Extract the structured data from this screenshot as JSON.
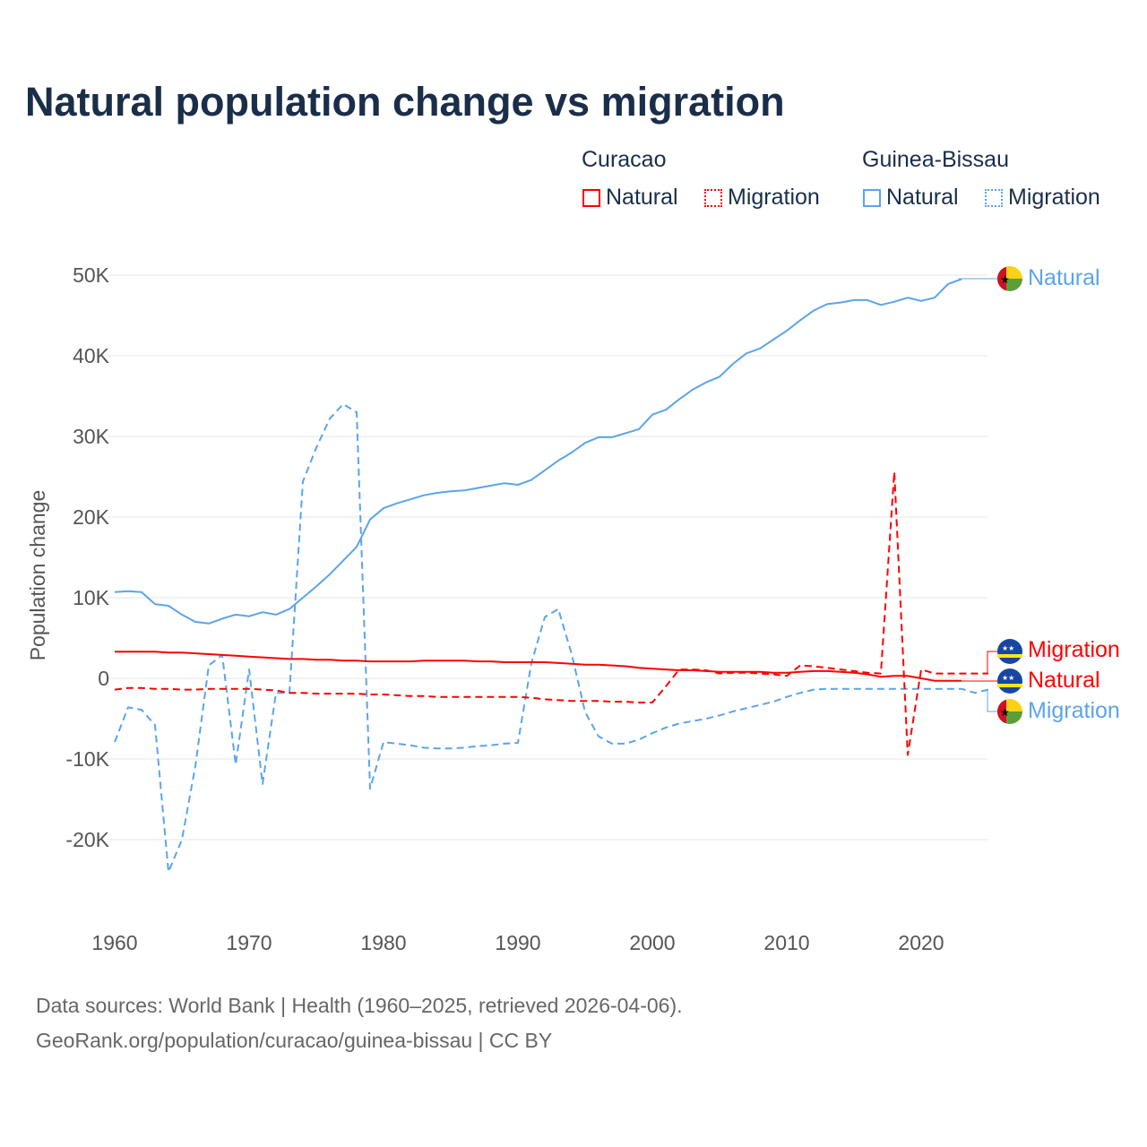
{
  "title": "Natural population change vs migration",
  "legend": {
    "groups": [
      {
        "name": "Curacao",
        "color": "#ff0000",
        "items": [
          "Natural",
          "Migration"
        ]
      },
      {
        "name": "Guinea-Bissau",
        "color": "#5ba4ec",
        "items": [
          "Natural",
          "Migration"
        ]
      }
    ]
  },
  "end_labels": {
    "gb_natural": "Natural",
    "cw_migration": "Migration",
    "cw_natural": "Natural",
    "gb_migration": "Migration"
  },
  "footer": {
    "line1": "Data sources: World Bank | Health (1960–2025, retrieved 2026-04-06).",
    "line2": "GeoRank.org/population/curacao/guinea-bissau | CC BY"
  },
  "chart_data": {
    "type": "line",
    "title": "Natural population change vs migration",
    "xlabel": "",
    "ylabel": "Population change",
    "xlim": [
      1960,
      2025
    ],
    "ylim": [
      -25000,
      52000
    ],
    "yticks": [
      {
        "v": 50000,
        "label": "50K"
      },
      {
        "v": 40000,
        "label": "40K"
      },
      {
        "v": 30000,
        "label": "30K"
      },
      {
        "v": 20000,
        "label": "20K"
      },
      {
        "v": 10000,
        "label": "10K"
      },
      {
        "v": 0,
        "label": "0"
      },
      {
        "v": -10000,
        "label": "-10K"
      },
      {
        "v": -20000,
        "label": "-20K"
      }
    ],
    "xticks": [
      {
        "v": 1960,
        "label": "1960"
      },
      {
        "v": 1970,
        "label": "1970"
      },
      {
        "v": 1980,
        "label": "1980"
      },
      {
        "v": 1990,
        "label": "1990"
      },
      {
        "v": 2000,
        "label": "2000"
      },
      {
        "v": 2010,
        "label": "2010"
      },
      {
        "v": 2020,
        "label": "2020"
      }
    ],
    "series": [
      {
        "name": "Guinea-Bissau Natural",
        "color": "#5ba4ec",
        "dash": false,
        "start": 1960,
        "values": [
          10.7,
          10.8,
          10.7,
          9.2,
          9.0,
          7.9,
          7.0,
          6.8,
          7.4,
          7.9,
          7.7,
          8.2,
          7.9,
          8.6,
          10.0,
          11.4,
          12.9,
          14.6,
          16.3,
          19.7,
          21.1,
          21.7,
          22.2,
          22.7,
          23.0,
          23.2,
          23.3,
          23.6,
          23.9,
          24.2,
          24.0,
          24.6,
          25.8,
          27.0,
          28.0,
          29.2,
          29.9,
          29.9,
          30.4,
          30.9,
          32.7,
          33.3,
          34.6,
          35.8,
          36.7,
          37.4,
          39.0,
          40.3,
          40.9,
          42.0,
          43.1,
          44.4,
          45.6,
          46.4,
          46.6,
          46.9,
          46.9,
          46.3,
          46.7,
          47.2,
          46.8,
          47.2,
          48.9,
          49.5
        ]
      },
      {
        "name": "Guinea-Bissau Migration",
        "color": "#5ba4ec",
        "dash": true,
        "start": 1960,
        "values": [
          -7.9,
          -3.6,
          -3.9,
          -5.8,
          -24.0,
          -20.0,
          -10.9,
          1.6,
          2.9,
          -10.7,
          1.1,
          -13.1,
          -1.8,
          -1.8,
          24.4,
          28.6,
          32.2,
          34.0,
          33.0,
          -13.7,
          -7.9,
          -8.1,
          -8.3,
          -8.6,
          -8.7,
          -8.7,
          -8.6,
          -8.4,
          -8.3,
          -8.1,
          -8.0,
          1.9,
          7.6,
          8.6,
          3.0,
          -4.2,
          -7.2,
          -8.1,
          -8.1,
          -7.6,
          -6.8,
          -6.1,
          -5.6,
          -5.3,
          -5.0,
          -4.6,
          -4.1,
          -3.7,
          -3.3,
          -2.9,
          -2.3,
          -1.8,
          -1.4,
          -1.3,
          -1.3,
          -1.3,
          -1.3,
          -1.3,
          -1.3,
          -1.3,
          -1.3,
          -1.3,
          -1.3,
          -1.3,
          -1.8,
          -1.4
        ]
      },
      {
        "name": "Curacao Natural",
        "color": "#ff0000",
        "dash": false,
        "start": 1960,
        "values": [
          3.3,
          3.3,
          3.3,
          3.3,
          3.2,
          3.2,
          3.1,
          3.0,
          2.9,
          2.8,
          2.7,
          2.6,
          2.5,
          2.4,
          2.4,
          2.3,
          2.3,
          2.2,
          2.2,
          2.1,
          2.1,
          2.1,
          2.1,
          2.2,
          2.2,
          2.2,
          2.2,
          2.1,
          2.1,
          2.0,
          2.0,
          2.0,
          2.0,
          1.9,
          1.8,
          1.7,
          1.7,
          1.6,
          1.5,
          1.3,
          1.2,
          1.1,
          1.0,
          1.0,
          0.9,
          0.8,
          0.8,
          0.8,
          0.8,
          0.7,
          0.7,
          0.8,
          0.9,
          0.9,
          0.8,
          0.7,
          0.5,
          0.2,
          0.3,
          0.3,
          0.0,
          -0.3,
          -0.3,
          -0.3
        ]
      },
      {
        "name": "Curacao Migration",
        "color": "#ff0000",
        "dash": true,
        "start": 1960,
        "values": [
          -1.4,
          -1.2,
          -1.2,
          -1.3,
          -1.3,
          -1.4,
          -1.4,
          -1.3,
          -1.3,
          -1.3,
          -1.3,
          -1.4,
          -1.5,
          -1.8,
          -1.8,
          -1.9,
          -1.9,
          -1.9,
          -1.9,
          -2.0,
          -2.0,
          -2.1,
          -2.2,
          -2.2,
          -2.3,
          -2.3,
          -2.3,
          -2.3,
          -2.3,
          -2.3,
          -2.3,
          -2.4,
          -2.6,
          -2.7,
          -2.8,
          -2.8,
          -2.8,
          -2.9,
          -2.9,
          -3.0,
          -3.0,
          -1.0,
          1.1,
          1.1,
          1.0,
          0.6,
          0.7,
          0.7,
          0.6,
          0.5,
          0.3,
          1.6,
          1.5,
          1.3,
          1.1,
          0.9,
          0.7,
          0.6,
          25.6,
          -9.5,
          1.1,
          0.6,
          0.6,
          0.6,
          0.6,
          0.6
        ]
      }
    ]
  }
}
